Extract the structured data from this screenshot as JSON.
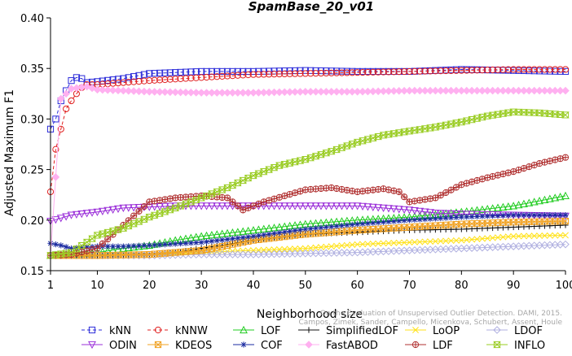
{
  "chart_data": {
    "type": "line",
    "title": "SpamBase_20_v01",
    "xlabel": "Neighborhood size",
    "ylabel": "Adjusted Maximum F1",
    "xlim": [
      1,
      100
    ],
    "ylim": [
      0.15,
      0.4
    ],
    "xticks": [
      1,
      10,
      20,
      30,
      40,
      50,
      60,
      70,
      80,
      90,
      100
    ],
    "yticks": [
      0.15,
      0.2,
      0.25,
      0.3,
      0.35,
      0.4
    ],
    "ytick_labels": [
      "0.15",
      "0.20",
      "0.25",
      "0.30",
      "0.35",
      "0.40"
    ],
    "grid": false,
    "legend_position": "bottom",
    "watermark": "Campos, Zimek, Sander, Campello, Micenkova, Schubert, Assent, Houle\nOn the Evaluation of Unsupervised Outlier Detection. DAMI, 2015.",
    "series": [
      {
        "name": "kNN",
        "color": "#2b2bd9",
        "marker": "square",
        "dash": true,
        "points": [
          [
            1,
            0.29
          ],
          [
            2,
            0.3
          ],
          [
            3,
            0.318
          ],
          [
            4,
            0.328
          ],
          [
            5,
            0.338
          ],
          [
            6,
            0.341
          ],
          [
            7,
            0.34
          ],
          [
            8,
            0.336
          ],
          [
            10,
            0.337
          ],
          [
            15,
            0.34
          ],
          [
            20,
            0.345
          ],
          [
            30,
            0.347
          ],
          [
            40,
            0.347
          ],
          [
            50,
            0.348
          ],
          [
            60,
            0.347
          ],
          [
            70,
            0.347
          ],
          [
            80,
            0.349
          ],
          [
            90,
            0.348
          ],
          [
            100,
            0.347
          ]
        ]
      },
      {
        "name": "kNNW",
        "color": "#e02020",
        "marker": "circle",
        "dash": true,
        "points": [
          [
            1,
            0.228
          ],
          [
            2,
            0.27
          ],
          [
            3,
            0.29
          ],
          [
            4,
            0.31
          ],
          [
            5,
            0.318
          ],
          [
            6,
            0.325
          ],
          [
            7,
            0.331
          ],
          [
            8,
            0.334
          ],
          [
            10,
            0.334
          ],
          [
            15,
            0.336
          ],
          [
            20,
            0.338
          ],
          [
            30,
            0.341
          ],
          [
            40,
            0.344
          ],
          [
            50,
            0.345
          ],
          [
            60,
            0.346
          ],
          [
            70,
            0.347
          ],
          [
            80,
            0.348
          ],
          [
            90,
            0.349
          ],
          [
            100,
            0.349
          ]
        ]
      },
      {
        "name": "LOF",
        "color": "#22cc22",
        "marker": "triangle-up",
        "dash": false,
        "points": [
          [
            1,
            0.165
          ],
          [
            5,
            0.166
          ],
          [
            10,
            0.168
          ],
          [
            15,
            0.172
          ],
          [
            20,
            0.175
          ],
          [
            25,
            0.18
          ],
          [
            30,
            0.184
          ],
          [
            40,
            0.19
          ],
          [
            50,
            0.196
          ],
          [
            60,
            0.2
          ],
          [
            70,
            0.203
          ],
          [
            80,
            0.208
          ],
          [
            90,
            0.214
          ],
          [
            100,
            0.224
          ]
        ]
      },
      {
        "name": "SimplifiedLOF",
        "color": "#111111",
        "marker": "plus",
        "dash": false,
        "points": [
          [
            1,
            0.165
          ],
          [
            5,
            0.165
          ],
          [
            10,
            0.165
          ],
          [
            15,
            0.165
          ],
          [
            20,
            0.166
          ],
          [
            25,
            0.168
          ],
          [
            30,
            0.172
          ],
          [
            40,
            0.18
          ],
          [
            50,
            0.186
          ],
          [
            60,
            0.188
          ],
          [
            70,
            0.19
          ],
          [
            80,
            0.191
          ],
          [
            90,
            0.193
          ],
          [
            100,
            0.195
          ]
        ]
      },
      {
        "name": "LoOP",
        "color": "#ffe21a",
        "marker": "cross",
        "dash": false,
        "points": [
          [
            1,
            0.165
          ],
          [
            5,
            0.165
          ],
          [
            10,
            0.165
          ],
          [
            15,
            0.166
          ],
          [
            20,
            0.166
          ],
          [
            30,
            0.168
          ],
          [
            40,
            0.17
          ],
          [
            50,
            0.172
          ],
          [
            60,
            0.176
          ],
          [
            70,
            0.178
          ],
          [
            80,
            0.18
          ],
          [
            90,
            0.184
          ],
          [
            100,
            0.185
          ]
        ]
      },
      {
        "name": "LDOF",
        "color": "#b0b0e0",
        "marker": "diamond",
        "dash": false,
        "points": [
          [
            1,
            0.165
          ],
          [
            10,
            0.165
          ],
          [
            20,
            0.165
          ],
          [
            30,
            0.166
          ],
          [
            40,
            0.166
          ],
          [
            50,
            0.167
          ],
          [
            60,
            0.168
          ],
          [
            70,
            0.17
          ],
          [
            80,
            0.172
          ],
          [
            90,
            0.174
          ],
          [
            100,
            0.176
          ]
        ]
      },
      {
        "name": "ODIN",
        "color": "#9b30d9",
        "marker": "triangle-down",
        "dash": false,
        "points": [
          [
            1,
            0.199
          ],
          [
            5,
            0.205
          ],
          [
            10,
            0.208
          ],
          [
            15,
            0.212
          ],
          [
            20,
            0.213
          ],
          [
            25,
            0.214
          ],
          [
            30,
            0.214
          ],
          [
            40,
            0.214
          ],
          [
            50,
            0.214
          ],
          [
            60,
            0.214
          ],
          [
            70,
            0.21
          ],
          [
            75,
            0.207
          ],
          [
            80,
            0.206
          ],
          [
            90,
            0.205
          ],
          [
            100,
            0.204
          ]
        ]
      },
      {
        "name": "KDEOS",
        "color": "#f0a020",
        "marker": "cross-square",
        "dash": false,
        "points": [
          [
            1,
            0.165
          ],
          [
            10,
            0.165
          ],
          [
            20,
            0.166
          ],
          [
            30,
            0.17
          ],
          [
            40,
            0.18
          ],
          [
            50,
            0.186
          ],
          [
            60,
            0.19
          ],
          [
            70,
            0.193
          ],
          [
            80,
            0.196
          ],
          [
            90,
            0.198
          ],
          [
            100,
            0.199
          ]
        ]
      },
      {
        "name": "COF",
        "color": "#1a2aa0",
        "marker": "asterisk",
        "dash": false,
        "points": [
          [
            1,
            0.177
          ],
          [
            3,
            0.175
          ],
          [
            5,
            0.172
          ],
          [
            10,
            0.174
          ],
          [
            15,
            0.174
          ],
          [
            20,
            0.175
          ],
          [
            30,
            0.178
          ],
          [
            40,
            0.184
          ],
          [
            50,
            0.191
          ],
          [
            60,
            0.196
          ],
          [
            70,
            0.2
          ],
          [
            80,
            0.203
          ],
          [
            90,
            0.205
          ],
          [
            100,
            0.205
          ]
        ]
      },
      {
        "name": "FastABOD",
        "color": "#ffb0f0",
        "marker": "diamond-filled",
        "dash": false,
        "points": [
          [
            1,
            0.165
          ],
          [
            3,
            0.32
          ],
          [
            5,
            0.33
          ],
          [
            8,
            0.332
          ],
          [
            10,
            0.329
          ],
          [
            20,
            0.327
          ],
          [
            30,
            0.326
          ],
          [
            40,
            0.326
          ],
          [
            50,
            0.327
          ],
          [
            60,
            0.327
          ],
          [
            70,
            0.328
          ],
          [
            80,
            0.328
          ],
          [
            90,
            0.328
          ],
          [
            100,
            0.328
          ]
        ]
      },
      {
        "name": "LDF",
        "color": "#b03030",
        "marker": "circle-plus",
        "dash": false,
        "points": [
          [
            1,
            0.165
          ],
          [
            5,
            0.166
          ],
          [
            10,
            0.172
          ],
          [
            15,
            0.195
          ],
          [
            20,
            0.218
          ],
          [
            25,
            0.222
          ],
          [
            30,
            0.224
          ],
          [
            35,
            0.222
          ],
          [
            38,
            0.21
          ],
          [
            42,
            0.218
          ],
          [
            50,
            0.23
          ],
          [
            55,
            0.232
          ],
          [
            60,
            0.228
          ],
          [
            65,
            0.231
          ],
          [
            68,
            0.228
          ],
          [
            70,
            0.218
          ],
          [
            75,
            0.222
          ],
          [
            80,
            0.235
          ],
          [
            85,
            0.242
          ],
          [
            90,
            0.248
          ],
          [
            95,
            0.256
          ],
          [
            100,
            0.262
          ]
        ]
      },
      {
        "name": "INFLO",
        "color": "#99cc22",
        "marker": "hourglass",
        "dash": false,
        "points": [
          [
            1,
            0.165
          ],
          [
            5,
            0.168
          ],
          [
            10,
            0.185
          ],
          [
            15,
            0.192
          ],
          [
            20,
            0.203
          ],
          [
            25,
            0.212
          ],
          [
            30,
            0.222
          ],
          [
            35,
            0.232
          ],
          [
            40,
            0.244
          ],
          [
            45,
            0.254
          ],
          [
            50,
            0.26
          ],
          [
            55,
            0.268
          ],
          [
            60,
            0.277
          ],
          [
            65,
            0.284
          ],
          [
            70,
            0.288
          ],
          [
            75,
            0.292
          ],
          [
            80,
            0.297
          ],
          [
            85,
            0.303
          ],
          [
            90,
            0.307
          ],
          [
            95,
            0.306
          ],
          [
            100,
            0.304
          ]
        ]
      }
    ]
  }
}
